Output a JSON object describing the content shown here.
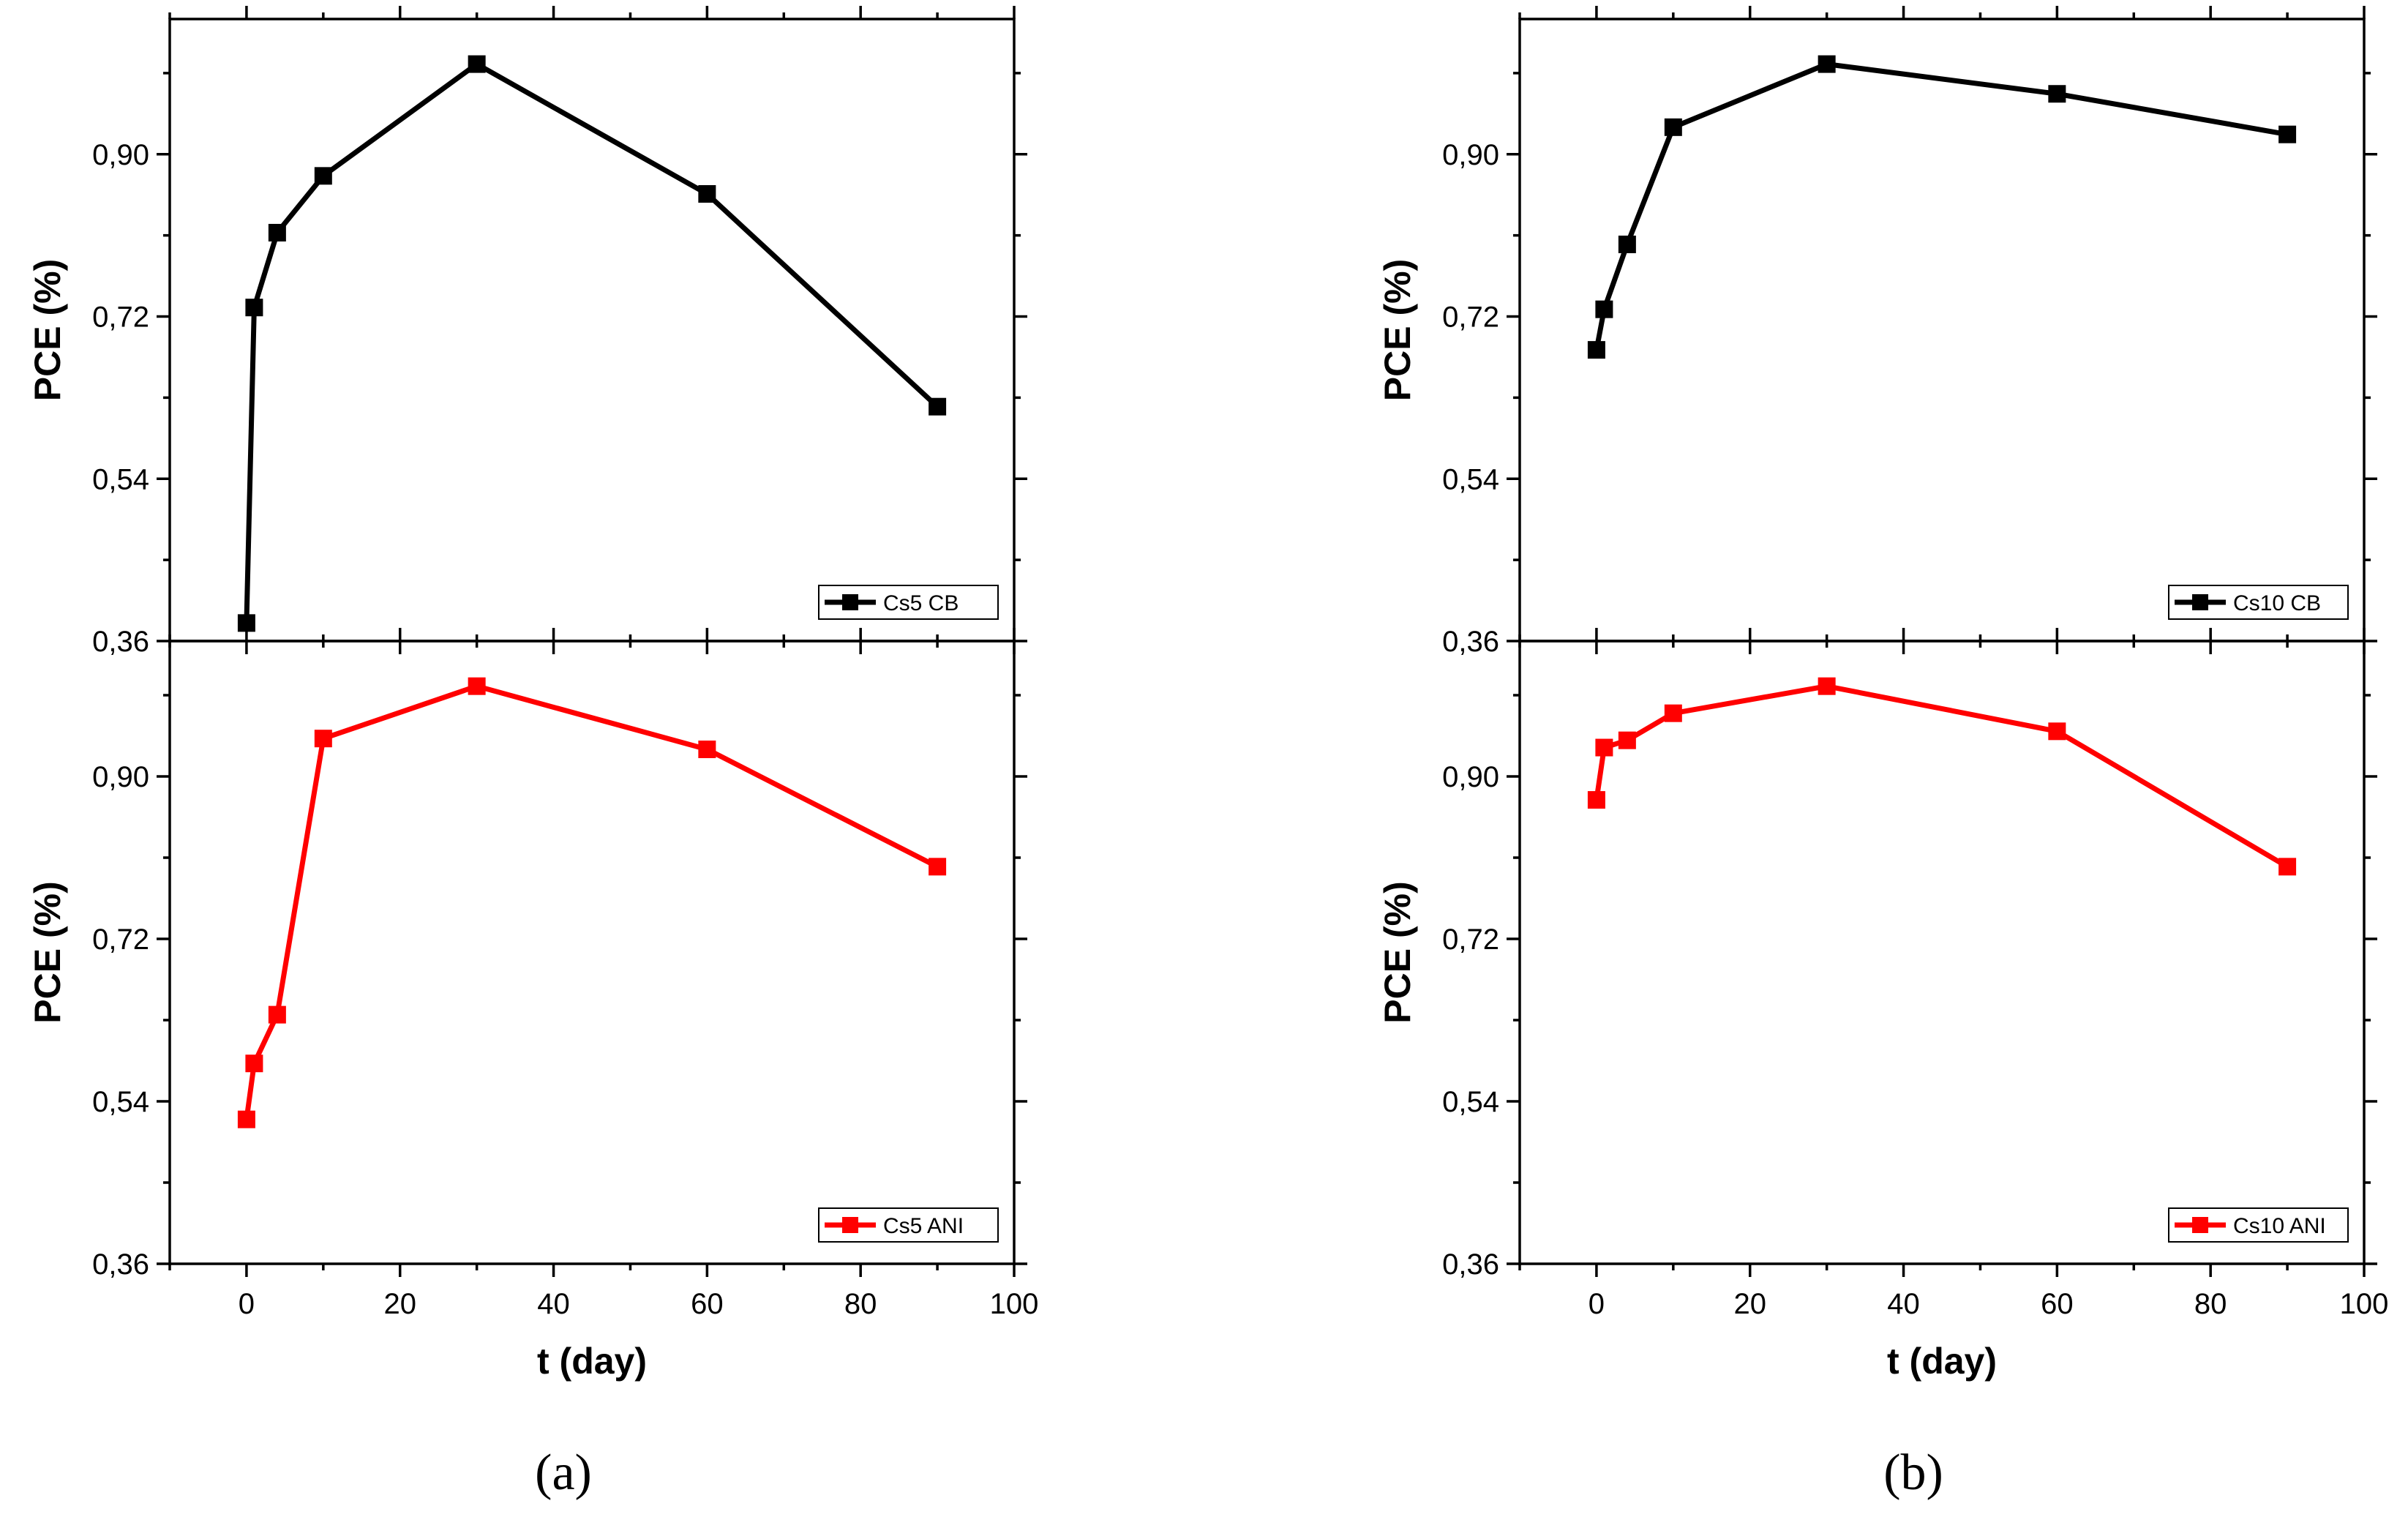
{
  "chart_data": [
    {
      "panel": "a-top",
      "type": "line",
      "x": [
        0,
        1,
        4,
        10,
        30,
        60,
        90
      ],
      "series": [
        {
          "name": "Cs5 CB",
          "values": [
            0.38,
            0.73,
            0.813,
            0.876,
            1.0,
            0.856,
            0.62
          ],
          "color": "#000000"
        }
      ],
      "xlabel": "",
      "ylabel": "PCE (%)",
      "xlim": [
        -10,
        100
      ],
      "ylim": [
        0.36,
        1.05
      ],
      "yticks": [
        "0,36",
        "0,54",
        "0,72",
        "0,90"
      ],
      "xticks": [],
      "legend": "bottom-right"
    },
    {
      "panel": "a-bottom",
      "type": "line",
      "x": [
        0,
        1,
        4,
        10,
        30,
        60,
        90
      ],
      "series": [
        {
          "name": "Cs5 ANI",
          "values": [
            0.52,
            0.582,
            0.636,
            0.942,
            1.0,
            0.93,
            0.8
          ],
          "color": "#ff0000"
        }
      ],
      "xlabel": "t (day)",
      "ylabel": "PCE (%)",
      "xlim": [
        -10,
        100
      ],
      "ylim": [
        0.36,
        1.05
      ],
      "yticks": [
        "0,36",
        "0,54",
        "0,72",
        "0,90"
      ],
      "xticks": [
        "0",
        "20",
        "40",
        "60",
        "80",
        "100"
      ],
      "legend": "bottom-right"
    },
    {
      "panel": "b-top",
      "type": "line",
      "x": [
        0,
        1,
        4,
        10,
        30,
        60,
        90
      ],
      "series": [
        {
          "name": "Cs10 CB",
          "values": [
            0.683,
            0.728,
            0.8,
            0.93,
            1.0,
            0.967,
            0.922
          ],
          "color": "#000000"
        }
      ],
      "xlabel": "",
      "ylabel": "PCE (%)",
      "xlim": [
        -10,
        100
      ],
      "ylim": [
        0.36,
        1.05
      ],
      "yticks": [
        "0,36",
        "0,54",
        "0,72",
        "0,90"
      ],
      "xticks": [],
      "legend": "bottom-right"
    },
    {
      "panel": "b-bottom",
      "type": "line",
      "x": [
        0,
        1,
        4,
        10,
        30,
        60,
        90
      ],
      "series": [
        {
          "name": "Cs10 ANI",
          "values": [
            0.874,
            0.932,
            0.94,
            0.97,
            1.0,
            0.95,
            0.8
          ],
          "color": "#ff0000"
        }
      ],
      "xlabel": "t (day)",
      "ylabel": "PCE (%)",
      "xlim": [
        -10,
        100
      ],
      "ylim": [
        0.36,
        1.05
      ],
      "yticks": [
        "0,36",
        "0,54",
        "0,72",
        "0,90"
      ],
      "xticks": [
        "0",
        "20",
        "40",
        "60",
        "80",
        "100"
      ],
      "legend": "bottom-right"
    }
  ],
  "captions": {
    "a": "(a)",
    "b": "(b)"
  }
}
